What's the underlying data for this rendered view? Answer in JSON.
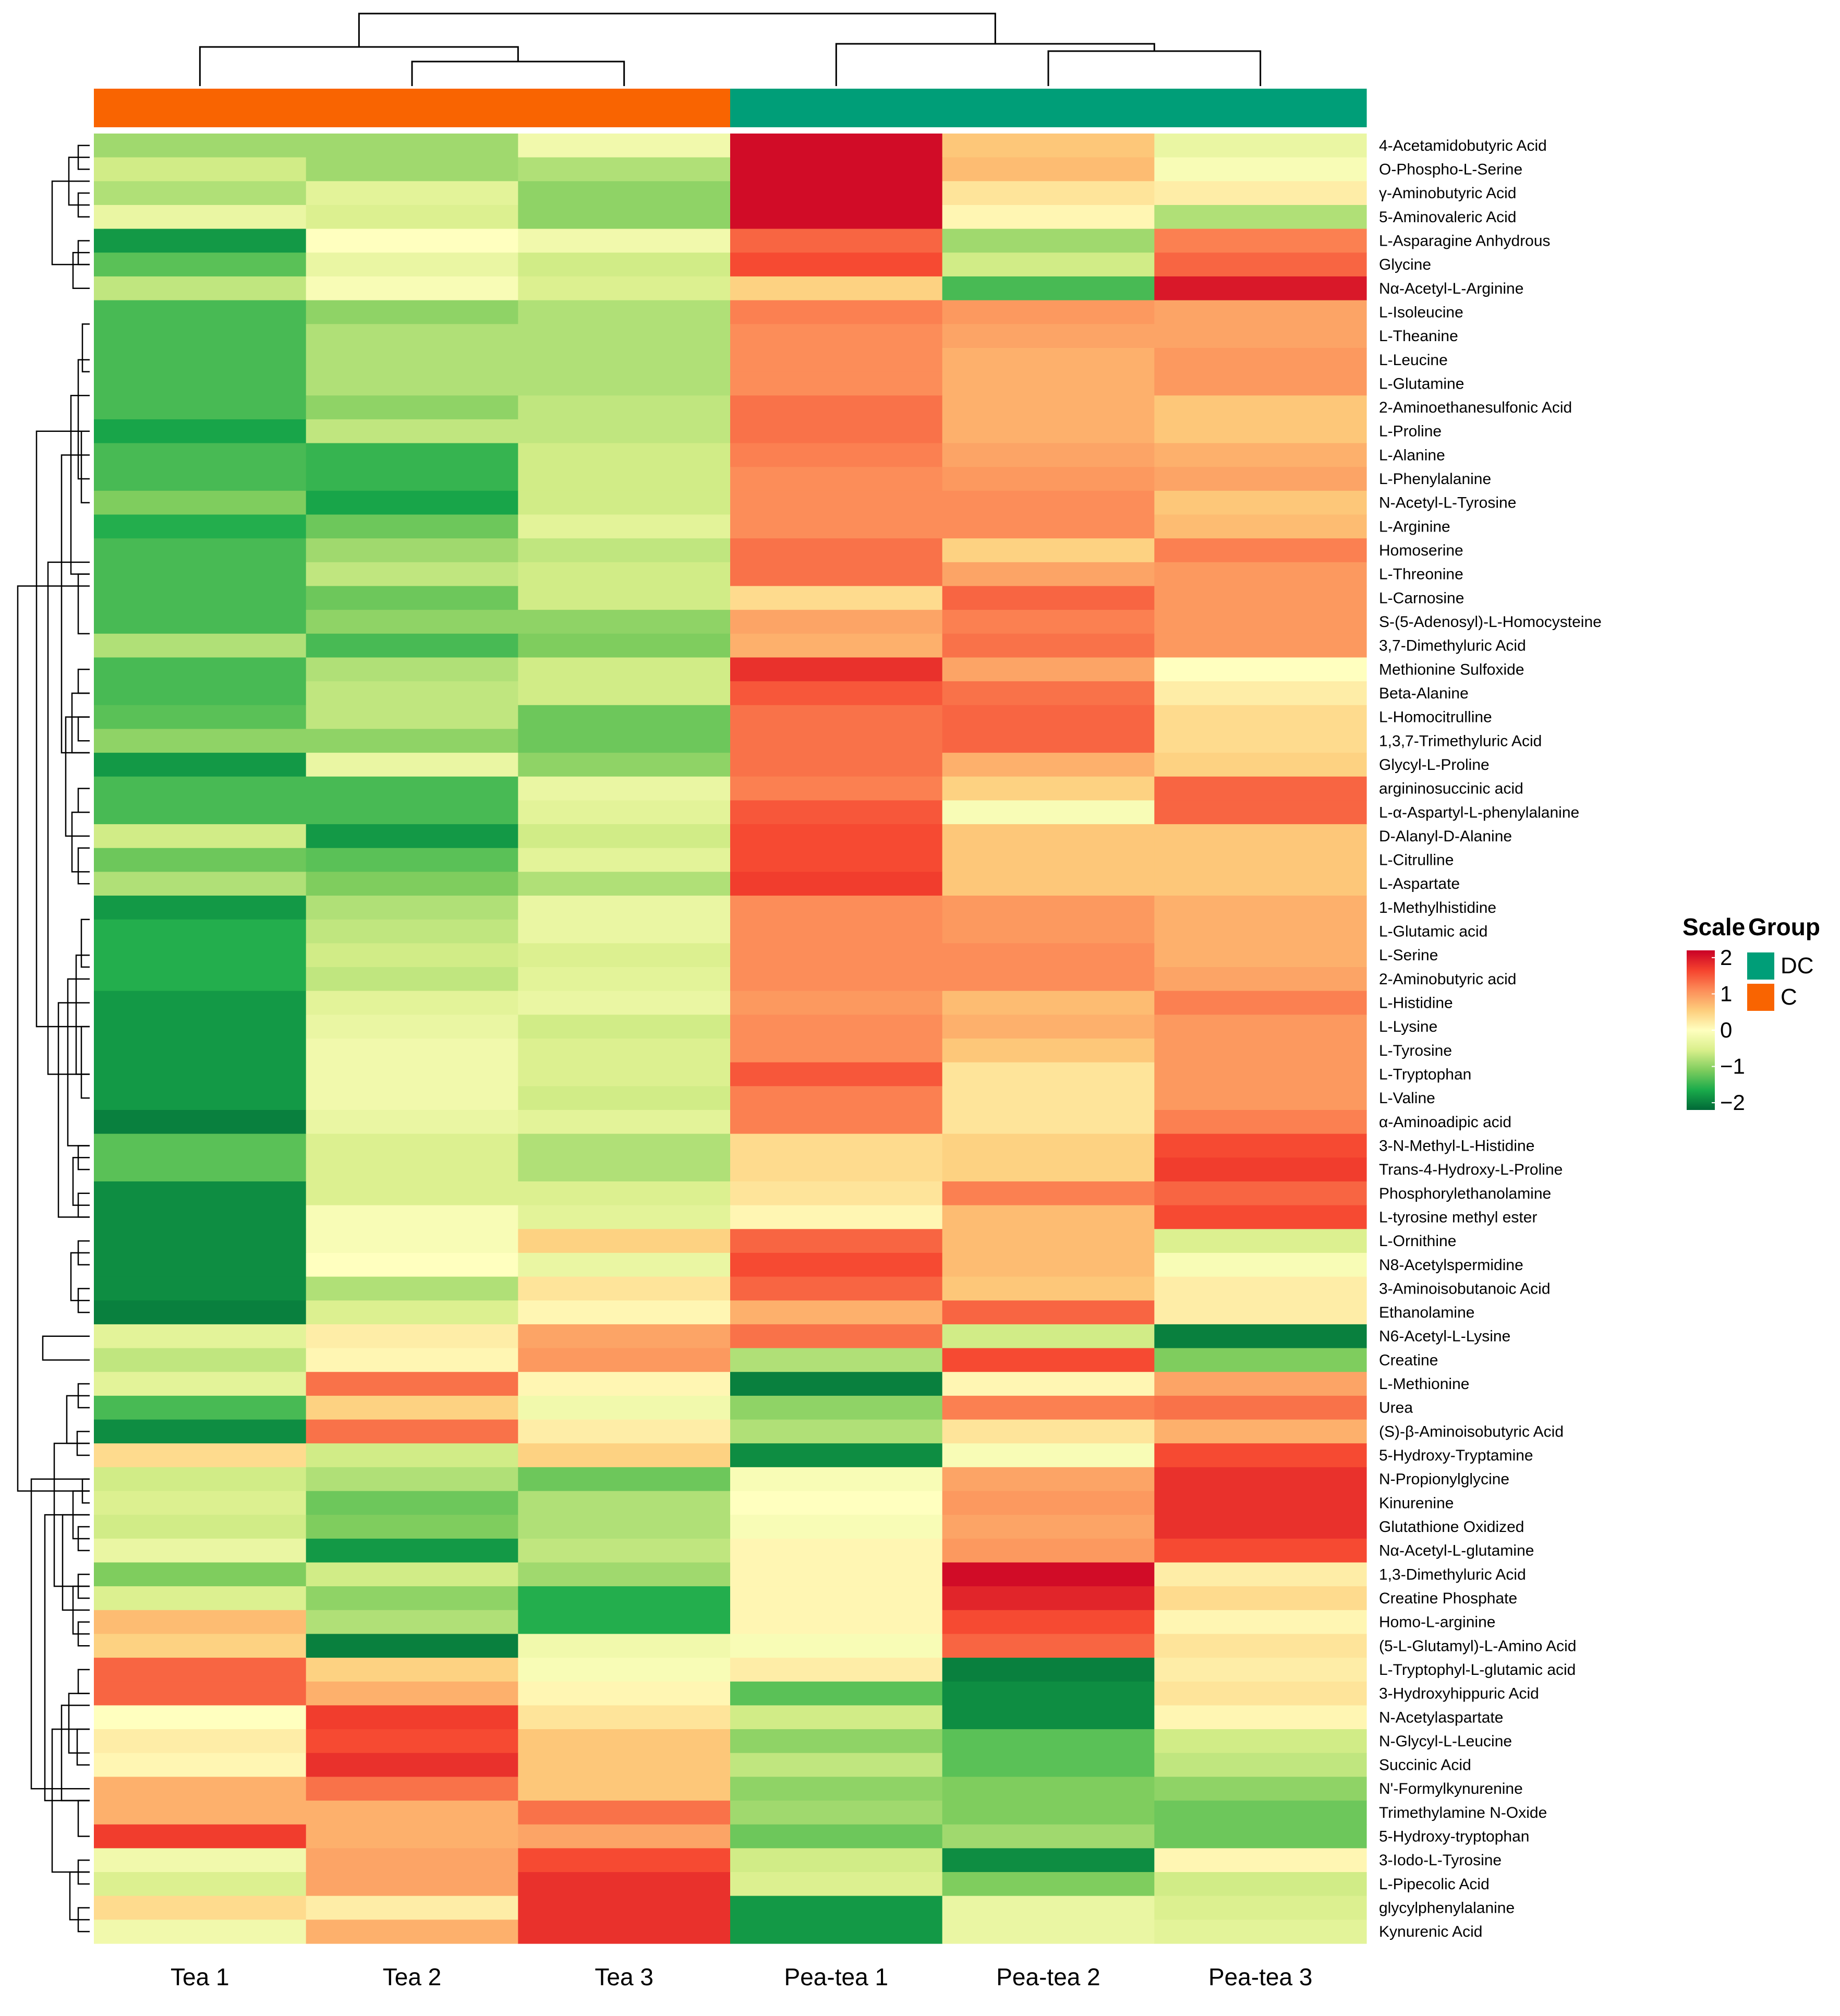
{
  "chart_data": {
    "type": "heatmap",
    "columns": [
      "Tea 1",
      "Tea 2",
      "Tea 3",
      "Pea-tea 1",
      "Pea-tea 2",
      "Pea-tea 3"
    ],
    "column_groups": [
      "C",
      "C",
      "C",
      "DC",
      "DC",
      "DC"
    ],
    "rows": [
      "4-Acetamidobutyric Acid",
      "O-Phospho-L-Serine",
      "γ-Aminobutyric Acid",
      "5-Aminovaleric Acid",
      "L-Asparagine Anhydrous",
      "Glycine",
      "Nα-Acetyl-L-Arginine",
      "L-Isoleucine",
      "L-Theanine",
      "L-Leucine",
      "L-Glutamine",
      "2-Aminoethanesulfonic Acid",
      "L-Proline",
      "L-Alanine",
      "L-Phenylalanine",
      "N-Acetyl-L-Tyrosine",
      "L-Arginine",
      "Homoserine",
      "L-Threonine",
      "L-Carnosine",
      "S-(5-Adenosyl)-L-Homocysteine",
      "3,7-Dimethyluric Acid",
      "Methionine Sulfoxide",
      "Beta-Alanine",
      "L-Homocitrulline",
      "1,3,7-Trimethyluric Acid",
      "Glycyl-L-Proline",
      "argininosuccinic acid",
      "L-α-Aspartyl-L-phenylalanine",
      "D-Alanyl-D-Alanine",
      "L-Citrulline",
      "L-Aspartate",
      "1-Methylhistidine",
      "L-Glutamic acid",
      "L-Serine",
      "2-Aminobutyric acid",
      "L-Histidine",
      "L-Lysine",
      "L-Tyrosine",
      "L-Tryptophan",
      "L-Valine",
      "α-Aminoadipic acid",
      "3-N-Methyl-L-Histidine",
      "Trans-4-Hydroxy-L-Proline",
      "Phosphorylethanolamine",
      "L-tyrosine methyl ester",
      "L-Ornithine",
      "N8-Acetylspermidine",
      "3-Aminoisobutanoic Acid",
      "Ethanolamine",
      "N6-Acetyl-L-Lysine",
      "Creatine",
      "L-Methionine",
      "Urea",
      "(S)-β-Aminoisobutyric Acid",
      "5-Hydroxy-Tryptamine",
      "N-Propionylglycine",
      "Kinurenine",
      "Glutathione Oxidized",
      "Nα-Acetyl-L-glutamine",
      "1,3-Dimethyluric Acid",
      "Creatine Phosphate",
      "Homo-L-arginine",
      "(5-L-Glutamyl)-L-Amino Acid",
      "L-Tryptophyl-L-glutamic acid",
      "3-Hydroxyhippuric Acid",
      "N-Acetylaspartate",
      "N-Glycyl-L-Leucine",
      "Succinic Acid",
      "N'-Formylkynurenine",
      "Trimethylamine N-Oxide",
      "5-Hydroxy-tryptophan",
      "3-Iodo-L-Tyrosine",
      "L-Pipecolic Acid",
      "glycylphenylalanine",
      "Kynurenic Acid"
    ],
    "values": [
      [
        -0.9,
        -0.9,
        -0.2,
        2.1,
        0.6,
        -0.3
      ],
      [
        -0.6,
        -0.9,
        -0.8,
        2.1,
        0.7,
        -0.1
      ],
      [
        -0.8,
        -0.4,
        -1.0,
        2.1,
        0.3,
        0.2
      ],
      [
        -0.3,
        -0.5,
        -1.0,
        2.1,
        0.1,
        -0.8
      ],
      [
        -1.8,
        0.0,
        -0.2,
        1.4,
        -0.9,
        1.2
      ],
      [
        -1.3,
        -0.3,
        -0.6,
        1.6,
        -0.6,
        1.4
      ],
      [
        -0.7,
        -0.1,
        -0.5,
        0.5,
        -1.4,
        2.0
      ],
      [
        -1.4,
        -1.0,
        -0.8,
        1.2,
        1.0,
        0.9
      ],
      [
        -1.4,
        -0.8,
        -0.8,
        1.1,
        0.9,
        0.9
      ],
      [
        -1.4,
        -0.8,
        -0.8,
        1.1,
        0.8,
        1.0
      ],
      [
        -1.4,
        -0.8,
        -0.8,
        1.1,
        0.8,
        1.0
      ],
      [
        -1.4,
        -1.0,
        -0.7,
        1.3,
        0.8,
        0.6
      ],
      [
        -1.7,
        -0.7,
        -0.7,
        1.3,
        0.8,
        0.6
      ],
      [
        -1.4,
        -1.5,
        -0.6,
        1.2,
        0.9,
        0.8
      ],
      [
        -1.4,
        -1.5,
        -0.6,
        1.1,
        1.0,
        0.9
      ],
      [
        -1.1,
        -1.7,
        -0.6,
        1.1,
        1.1,
        0.6
      ],
      [
        -1.6,
        -1.2,
        -0.4,
        1.1,
        1.1,
        0.7
      ],
      [
        -1.4,
        -0.9,
        -0.7,
        1.3,
        0.5,
        1.2
      ],
      [
        -1.4,
        -0.7,
        -0.6,
        1.3,
        0.9,
        1.0
      ],
      [
        -1.4,
        -1.2,
        -0.6,
        0.4,
        1.4,
        1.0
      ],
      [
        -1.4,
        -1.0,
        -1.0,
        0.9,
        1.2,
        1.0
      ],
      [
        -0.8,
        -1.4,
        -1.1,
        0.8,
        1.3,
        1.0
      ],
      [
        -1.4,
        -0.8,
        -0.6,
        1.8,
        0.9,
        0.0
      ],
      [
        -1.4,
        -0.7,
        -0.6,
        1.5,
        1.3,
        0.2
      ],
      [
        -1.3,
        -0.7,
        -1.2,
        1.3,
        1.4,
        0.4
      ],
      [
        -1.0,
        -1.0,
        -1.2,
        1.3,
        1.4,
        0.4
      ],
      [
        -1.8,
        -0.3,
        -1.0,
        1.3,
        0.8,
        0.5
      ],
      [
        -1.4,
        -1.4,
        -0.3,
        1.2,
        0.5,
        1.4
      ],
      [
        -1.4,
        -1.4,
        -0.4,
        1.5,
        -0.1,
        1.4
      ],
      [
        -0.6,
        -1.8,
        -0.6,
        1.6,
        0.6,
        0.6
      ],
      [
        -1.2,
        -1.3,
        -0.4,
        1.6,
        0.6,
        0.6
      ],
      [
        -0.8,
        -1.1,
        -0.8,
        1.7,
        0.6,
        0.6
      ],
      [
        -1.8,
        -0.8,
        -0.3,
        1.1,
        1.0,
        0.8
      ],
      [
        -1.6,
        -0.7,
        -0.3,
        1.1,
        1.0,
        0.8
      ],
      [
        -1.6,
        -0.6,
        -0.5,
        1.1,
        1.1,
        0.8
      ],
      [
        -1.6,
        -0.7,
        -0.4,
        1.1,
        1.1,
        0.9
      ],
      [
        -1.8,
        -0.4,
        -0.3,
        1.0,
        0.7,
        1.2
      ],
      [
        -1.8,
        -0.3,
        -0.6,
        1.1,
        0.8,
        1.0
      ],
      [
        -1.8,
        -0.2,
        -0.5,
        1.1,
        0.6,
        1.0
      ],
      [
        -1.8,
        -0.2,
        -0.5,
        1.5,
        0.3,
        1.0
      ],
      [
        -1.8,
        -0.2,
        -0.6,
        1.2,
        0.3,
        1.0
      ],
      [
        -2.0,
        -0.3,
        -0.4,
        1.2,
        0.3,
        1.2
      ],
      [
        -1.3,
        -0.5,
        -0.8,
        0.4,
        0.5,
        1.6
      ],
      [
        -1.3,
        -0.5,
        -0.8,
        0.4,
        0.5,
        1.7
      ],
      [
        -1.9,
        -0.5,
        -0.5,
        0.3,
        1.2,
        1.4
      ],
      [
        -1.9,
        -0.1,
        -0.4,
        0.1,
        0.7,
        1.6
      ],
      [
        -1.9,
        -0.1,
        0.5,
        1.4,
        0.7,
        -0.5
      ],
      [
        -1.9,
        0.0,
        -0.3,
        1.6,
        0.7,
        -0.1
      ],
      [
        -1.9,
        -0.8,
        0.3,
        1.4,
        0.6,
        0.2
      ],
      [
        -2.0,
        -0.5,
        0.1,
        0.8,
        1.4,
        0.2
      ],
      [
        -0.4,
        0.2,
        0.9,
        1.3,
        -0.6,
        -2.0
      ],
      [
        -0.7,
        0.1,
        1.0,
        -0.8,
        1.6,
        -1.1
      ],
      [
        -0.4,
        1.3,
        0.1,
        -2.0,
        0.1,
        0.9
      ],
      [
        -1.4,
        0.5,
        -0.2,
        -1.0,
        1.2,
        1.3
      ],
      [
        -1.9,
        1.3,
        0.2,
        -0.8,
        0.3,
        0.8
      ],
      [
        0.4,
        -0.6,
        0.5,
        -1.9,
        -0.1,
        1.6
      ],
      [
        -0.6,
        -0.8,
        -1.2,
        -0.1,
        0.9,
        1.8
      ],
      [
        -0.5,
        -1.2,
        -0.8,
        0.0,
        1.0,
        1.8
      ],
      [
        -0.6,
        -1.1,
        -0.8,
        -0.1,
        0.9,
        1.8
      ],
      [
        -0.3,
        -1.8,
        -0.7,
        0.1,
        1.0,
        1.6
      ],
      [
        -1.1,
        -0.6,
        -0.9,
        0.1,
        2.1,
        0.2
      ],
      [
        -0.5,
        -1.0,
        -1.6,
        0.1,
        1.9,
        0.4
      ],
      [
        0.7,
        -0.8,
        -1.6,
        0.1,
        1.6,
        0.1
      ],
      [
        0.5,
        -2.0,
        -0.2,
        -0.1,
        1.4,
        0.3
      ],
      [
        1.4,
        0.5,
        -0.1,
        0.2,
        -2.0,
        0.2
      ],
      [
        1.4,
        0.8,
        0.1,
        -1.3,
        -1.9,
        0.3
      ],
      [
        0.0,
        1.7,
        0.3,
        -0.6,
        -1.9,
        0.1
      ],
      [
        0.2,
        1.6,
        0.6,
        -1.0,
        -1.3,
        -0.6
      ],
      [
        0.1,
        1.8,
        0.6,
        -0.7,
        -1.3,
        -0.7
      ],
      [
        0.8,
        1.3,
        0.6,
        -1.0,
        -1.1,
        -1.0
      ],
      [
        0.8,
        0.8,
        1.3,
        -0.9,
        -1.1,
        -1.2
      ],
      [
        1.7,
        0.8,
        0.9,
        -1.2,
        -0.9,
        -1.2
      ],
      [
        -0.2,
        0.9,
        1.6,
        -0.6,
        -1.9,
        0.1
      ],
      [
        -0.5,
        0.9,
        1.8,
        -0.5,
        -1.1,
        -0.6
      ],
      [
        0.4,
        0.2,
        1.8,
        -1.8,
        -0.3,
        -0.5
      ],
      [
        -0.2,
        0.8,
        1.8,
        -1.8,
        -0.3,
        -0.4
      ]
    ],
    "color_scale": {
      "title": "Scale",
      "domain": [
        -2.2,
        2.2
      ],
      "ticks": [
        2,
        1,
        0,
        -1,
        -2
      ],
      "tick_labels": [
        "2",
        "1",
        "0",
        "−1",
        "−2"
      ],
      "stops": [
        "#006837",
        "#1aab4b",
        "#7fcd5e",
        "#d9ef8b",
        "#ffffbf",
        "#fdcd7c",
        "#fc8d59",
        "#f5432e",
        "#c90026"
      ]
    },
    "group_legend": {
      "title": "Group",
      "entries": [
        {
          "label": "DC",
          "color": "#009e78"
        },
        {
          "label": "C",
          "color": "#f96401"
        }
      ]
    },
    "legend_position": "right",
    "column_dendrogram": true,
    "row_dendrogram": true,
    "grid": false
  }
}
